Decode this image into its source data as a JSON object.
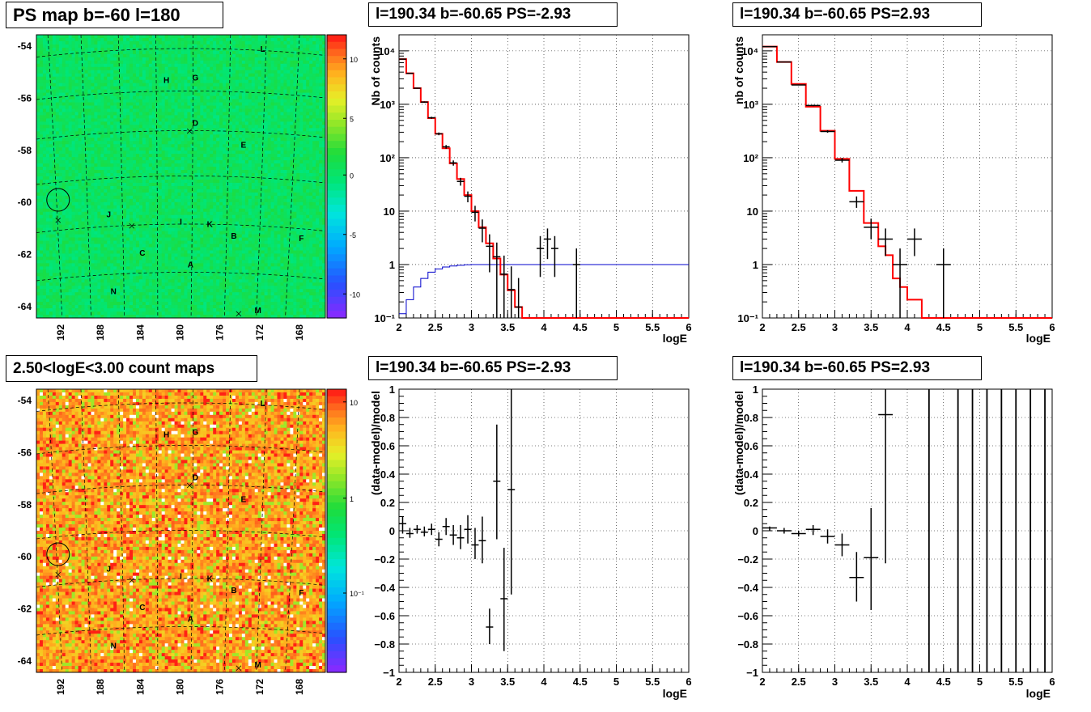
{
  "colors": {
    "model_line": "#ff0000",
    "reference_line": "#0000cc",
    "data_points": "#000000",
    "map_background": "#22dd44"
  },
  "panels": {
    "ps_map": {
      "title": "PS map b=-60 l=180",
      "colorbar_ticks": [
        "10",
        "5",
        "0",
        "-5",
        "-10"
      ]
    },
    "count_map": {
      "title": "2.50<logE<3.00 count maps",
      "colorbar_ticks": [
        "10",
        "1",
        "10⁻¹"
      ]
    },
    "spec_neg": {
      "title": "l=190.34 b=-60.65 PS=-2.93"
    },
    "spec_pos": {
      "title": "l=190.34 b=-60.65 PS=2.93"
    },
    "resid_neg": {
      "title": "l=190.34 b=-60.65 PS=-2.93"
    },
    "resid_pos": {
      "title": "l=190.34 b=-60.65 PS=2.93"
    }
  },
  "chart_data": [
    {
      "id": "ps_map",
      "type": "heatmap",
      "title": "PS map b=-60 l=180",
      "x_ticks": [
        "192",
        "188",
        "184",
        "180",
        "176",
        "172",
        "168"
      ],
      "y_ticks": [
        "-54",
        "-56",
        "-58",
        "-60",
        "-62",
        "-64"
      ],
      "z_scale": "linear",
      "z_range": [
        -12,
        12
      ],
      "sources": [
        {
          "label": "L",
          "l": 170.5,
          "b": -54.3
        },
        {
          "label": "H",
          "l": 180.5,
          "b": -55.6
        },
        {
          "label": "G",
          "l": 177.5,
          "b": -55.5
        },
        {
          "label": "D",
          "l": 177.5,
          "b": -57.4
        },
        {
          "label": "E",
          "l": 172.5,
          "b": -58.3
        },
        {
          "label": "J",
          "l": 186.5,
          "b": -61.2
        },
        {
          "label": "I",
          "l": 179.0,
          "b": -61.5
        },
        {
          "label": "K",
          "l": 176.0,
          "b": -61.6
        },
        {
          "label": "B",
          "l": 173.5,
          "b": -62.1
        },
        {
          "label": "F",
          "l": 166.5,
          "b": -62.2
        },
        {
          "label": "C",
          "l": 183.0,
          "b": -62.8
        },
        {
          "label": "A",
          "l": 178.0,
          "b": -63.3
        },
        {
          "label": "N",
          "l": 186.0,
          "b": -64.4
        },
        {
          "label": "M",
          "l": 171.0,
          "b": -65.2
        }
      ]
    },
    {
      "id": "count_map",
      "type": "heatmap",
      "title": "2.50<logE<3.00 count maps",
      "x_ticks": [
        "192",
        "188",
        "184",
        "180",
        "176",
        "172",
        "168"
      ],
      "y_ticks": [
        "-54",
        "-56",
        "-58",
        "-60",
        "-62",
        "-64"
      ],
      "z_scale": "log",
      "z_range": [
        0.05,
        20
      ]
    },
    {
      "id": "spec_neg",
      "type": "line",
      "title": "l=190.34 b=-60.65 PS=-2.93",
      "xlabel": "logE",
      "ylabel": "Nb of counts",
      "x_ticks": [
        "2",
        "2.5",
        "3",
        "3.5",
        "4",
        "4.5",
        "5",
        "5.5",
        "6"
      ],
      "y_ticks": [
        "10⁻¹",
        "1",
        "10",
        "10²",
        "10³",
        "10⁴"
      ],
      "xlim": [
        2,
        6
      ],
      "ylim": [
        0.1,
        20000
      ],
      "yscale": "log",
      "grid": true,
      "series": [
        {
          "kind": "model",
          "bin_edges": [
            2.0,
            2.1,
            2.2,
            2.3,
            2.4,
            2.5,
            2.6,
            2.7,
            2.8,
            2.9,
            3.0,
            3.1,
            3.2,
            3.3,
            3.4,
            3.5,
            3.6,
            3.7,
            3.8,
            3.9,
            4.0,
            4.1,
            6.0
          ],
          "values": [
            7000,
            3800,
            2000,
            1100,
            550,
            280,
            150,
            78,
            40,
            20,
            10,
            5,
            2.5,
            1.3,
            0.65,
            0.33,
            0.16,
            0.1,
            0.1,
            0.1,
            0.1,
            0.1
          ]
        },
        {
          "kind": "reference",
          "bin_edges": [
            2.0,
            2.1,
            2.2,
            2.3,
            2.4,
            2.5,
            2.6,
            2.7,
            2.8,
            2.9,
            3.0,
            3.1,
            6.0
          ],
          "values": [
            0.12,
            0.22,
            0.38,
            0.55,
            0.72,
            0.83,
            0.9,
            0.94,
            0.97,
            0.99,
            1.0,
            1.0
          ]
        },
        {
          "kind": "data",
          "x": [
            2.05,
            2.15,
            2.25,
            2.35,
            2.45,
            2.55,
            2.65,
            2.75,
            2.85,
            2.95,
            3.05,
            3.15,
            3.25,
            3.35,
            3.45,
            3.55,
            3.65,
            3.95,
            4.05,
            4.15,
            4.45
          ],
          "y": [
            7000,
            3800,
            2000,
            1100,
            550,
            270,
            160,
            75,
            38,
            20,
            10,
            5,
            2.5,
            1.3,
            0.65,
            0.33,
            0.16,
            2,
            3,
            2,
            1
          ],
          "display": [
            7000,
            3800,
            2000,
            1100,
            560,
            280,
            160,
            80,
            36,
            19,
            9.5,
            4.8,
            2.2,
            1.4,
            0.66,
            0.34,
            0.16,
            2,
            3,
            2,
            1
          ]
        }
      ]
    },
    {
      "id": "spec_pos",
      "type": "line",
      "title": "l=190.34 b=-60.65 PS=2.93",
      "xlabel": "logE",
      "ylabel": "nb of counts",
      "x_ticks": [
        "2",
        "2.5",
        "3",
        "3.5",
        "4",
        "4.5",
        "5",
        "5.5",
        "6"
      ],
      "y_ticks": [
        "10⁻¹",
        "1",
        "10",
        "10²",
        "10³",
        "10⁴"
      ],
      "xlim": [
        2,
        6
      ],
      "ylim": [
        0.1,
        20000
      ],
      "yscale": "log",
      "grid": true
    },
    {
      "id": "resid_neg",
      "type": "scatter",
      "title": "l=190.34 b=-60.65 PS=-2.93",
      "xlabel": "logE",
      "ylabel": "(data-model)/model",
      "x_ticks": [
        "2",
        "2.5",
        "3",
        "3.5",
        "4",
        "4.5",
        "5",
        "5.5",
        "6"
      ],
      "y_ticks": [
        "−1",
        "−0.8",
        "−0.6",
        "−0.4",
        "−0.2",
        "0",
        "0.2",
        "0.4",
        "0.6",
        "0.8",
        "1"
      ],
      "xlim": [
        2,
        6
      ],
      "ylim": [
        -1,
        1
      ],
      "grid": true
    },
    {
      "id": "resid_pos",
      "type": "scatter",
      "title": "l=190.34 b=-60.65 PS=2.93",
      "xlabel": "logE",
      "ylabel": "(data-model)/model",
      "x_ticks": [
        "2",
        "2.5",
        "3",
        "3.5",
        "4",
        "4.5",
        "5",
        "5.5",
        "6"
      ],
      "y_ticks": [
        "−1",
        "−0.8",
        "−0.6",
        "−0.4",
        "−0.2",
        "0",
        "0.2",
        "0.4",
        "0.6",
        "0.8",
        "1"
      ],
      "xlim": [
        2,
        6
      ],
      "ylim": [
        -1,
        1
      ],
      "grid": true
    }
  ]
}
